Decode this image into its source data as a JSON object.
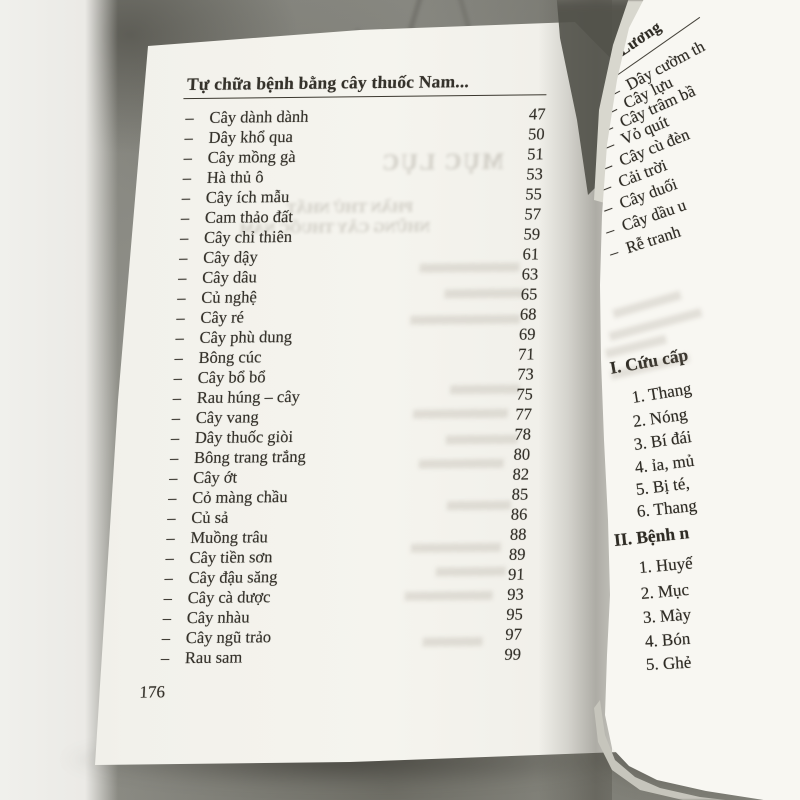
{
  "colors": {
    "paper": "#f5f4ee",
    "ink": "#35322b",
    "concrete": "#8d8d86",
    "shadow": "#55544c"
  },
  "left_page": {
    "header": "Tự chữa bệnh bằng cây thuốc Nam...",
    "bullet": "–",
    "entries": [
      {
        "label": "Cây dành dành",
        "page": "47"
      },
      {
        "label": "Dây khổ qua",
        "page": "50"
      },
      {
        "label": "Cây mồng gà",
        "page": "51"
      },
      {
        "label": "Hà thủ ô",
        "page": "53"
      },
      {
        "label": "Cây ích mẫu",
        "page": "55"
      },
      {
        "label": "Cam thảo đất",
        "page": "57"
      },
      {
        "label": "Cây chỉ thiên",
        "page": "59"
      },
      {
        "label": "Cây dậy",
        "page": "61"
      },
      {
        "label": "Cây dâu",
        "page": "63"
      },
      {
        "label": "Củ nghệ",
        "page": "65"
      },
      {
        "label": "Cây ré",
        "page": "68"
      },
      {
        "label": "Cây phù dung",
        "page": "69"
      },
      {
        "label": "Bông cúc",
        "page": "71"
      },
      {
        "label": "Cây bổ bổ",
        "page": "73"
      },
      {
        "label": "Rau húng – cây",
        "page": "75"
      },
      {
        "label": "Cây vang",
        "page": "77"
      },
      {
        "label": "Dây thuốc giòi",
        "page": "78"
      },
      {
        "label": "Bông trang trắng",
        "page": "80"
      },
      {
        "label": "Cây ớt",
        "page": "82"
      },
      {
        "label": "Cỏ màng chầu",
        "page": "85"
      },
      {
        "label": "Củ sả",
        "page": "86"
      },
      {
        "label": "Muồng trâu",
        "page": "88"
      },
      {
        "label": "Cây tiền sơn",
        "page": "89"
      },
      {
        "label": "Cây đậu săng",
        "page": "91"
      },
      {
        "label": "Cây cà dược",
        "page": "93"
      },
      {
        "label": "Cây nhàu",
        "page": "95"
      },
      {
        "label": "Cây ngũ trảo",
        "page": "97"
      },
      {
        "label": "Rau sam",
        "page": "99"
      }
    ],
    "page_number": "176",
    "ghost_bleed": [
      "MỤC LỤC",
      "PHẦN THỨ NHẤT",
      "NHỮNG CÂY THUỐC NAM"
    ]
  },
  "right_page": {
    "header": "Lương",
    "bullet": "–",
    "entries": [
      "Dây cườm th",
      "Cây lựu",
      "Cây trâm bầ",
      "Vỏ quít",
      "Cây cù đèn",
      "Cải trời",
      "Cây duối",
      "Cây dầu u",
      "Rễ tranh"
    ],
    "sections": [
      {
        "title": "I. Cứu cấp",
        "items": [
          "1. Thang",
          "2. Nóng",
          "3. Bí đái",
          "4. ỉa, mủ",
          "5. Bị té,",
          "6. Thang"
        ]
      },
      {
        "title": "II. Bệnh n",
        "items": [
          "1. Huyế",
          "2. Mục",
          "3. Mày",
          "4. Bón",
          "5. Ghẻ"
        ]
      }
    ]
  }
}
